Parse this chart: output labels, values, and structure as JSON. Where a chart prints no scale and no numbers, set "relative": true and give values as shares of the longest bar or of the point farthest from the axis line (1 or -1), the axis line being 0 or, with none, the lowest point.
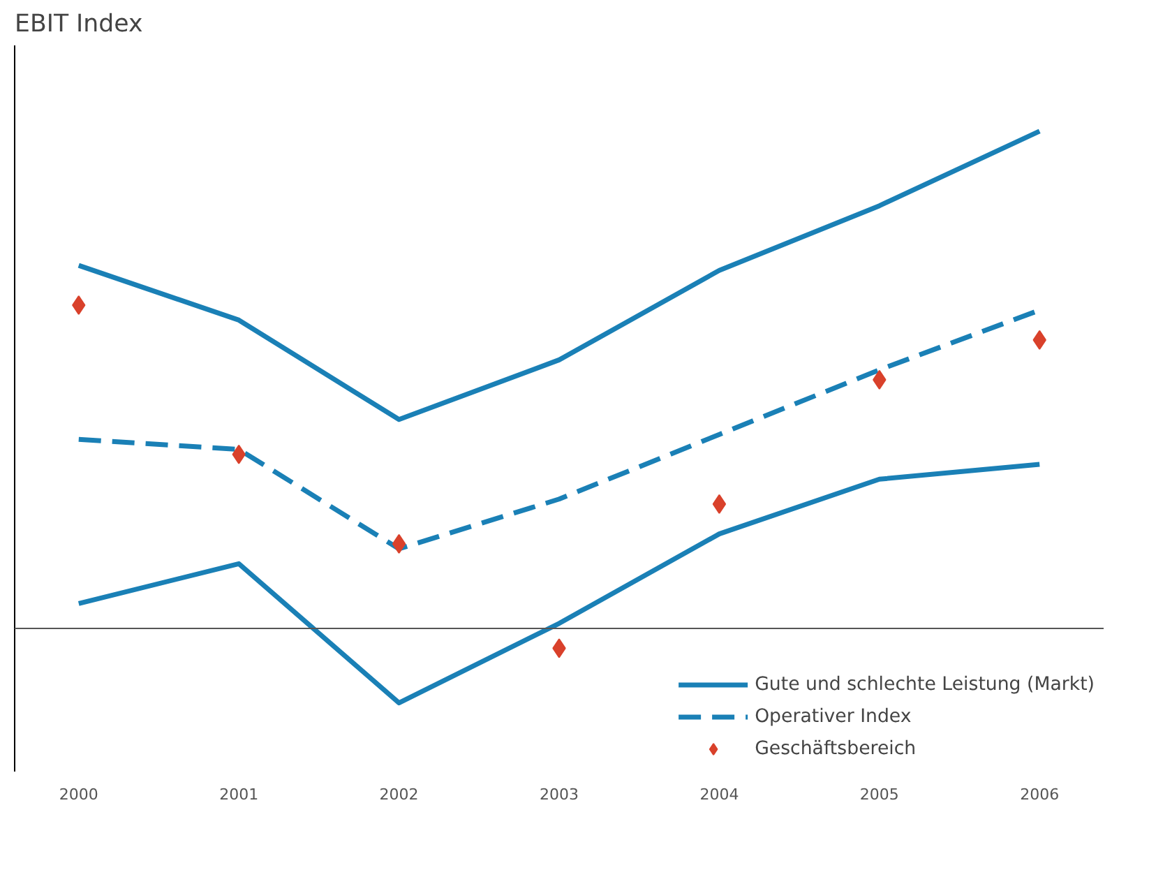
{
  "chart_data": {
    "type": "line",
    "title": "EBIT Index",
    "relative": true,
    "tick_labels": "x",
    "grid": false,
    "legend": "bottom",
    "categories": [
      "2000",
      "2001",
      "2002",
      "2003",
      "2004",
      "2005",
      "2006"
    ],
    "series": [
      {
        "name": "Gute und schlechte Leistung (Markt)",
        "color": "#1a80b6",
        "line_style": "solid",
        "marker": "none",
        "values": [
          0.73,
          0.62,
          0.42,
          0.54,
          0.72,
          0.85,
          1.0
        ]
      },
      {
        "color": "#1a80b6",
        "line_style": "solid",
        "marker": "none",
        "values": [
          0.05,
          0.13,
          -0.15,
          0.01,
          0.19,
          0.3,
          0.33
        ]
      },
      {
        "name": "Operativer Index",
        "color": "#1a80b6",
        "line_style": "dashed",
        "marker": "none",
        "values": [
          0.38,
          0.36,
          0.16,
          0.26,
          0.39,
          0.52,
          0.64
        ]
      },
      {
        "name": "Geschäftsbereich",
        "type": "scatter",
        "color": "#d9412b",
        "marker": "diamond",
        "values": [
          0.65,
          0.35,
          0.17,
          -0.04,
          0.25,
          0.5,
          0.58
        ]
      }
    ]
  }
}
